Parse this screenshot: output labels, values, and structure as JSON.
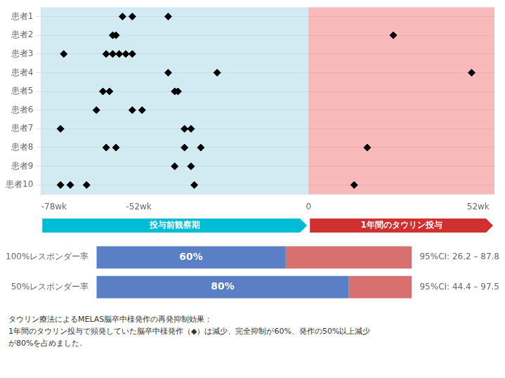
{
  "chart_data": [
    {
      "type": "scatter",
      "categories": [
        "患者1",
        "患者2",
        "患者3",
        "患者4",
        "患者5",
        "患者6",
        "患者7",
        "患者8",
        "患者9",
        "患者10"
      ],
      "x": [
        [
          -57,
          -54,
          -43
        ],
        [
          -60,
          -59,
          26
        ],
        [
          -75,
          -62,
          -60,
          -58,
          -56,
          -54
        ],
        [
          -43,
          -28,
          50
        ],
        [
          -63,
          -61,
          -41,
          -40
        ],
        [
          -65,
          -54,
          -51
        ],
        [
          -76,
          -38,
          -36
        ],
        [
          -62,
          -59,
          -38,
          -33,
          18
        ],
        [
          -41,
          -36
        ],
        [
          -76,
          -73,
          -68,
          -35,
          14
        ]
      ],
      "color": "#000000",
      "marker": "diamond",
      "xlim": [
        -82,
        57
      ],
      "xticks": [
        {
          "value": -78,
          "label": "-78wk"
        },
        {
          "value": -52,
          "label": "-52wk"
        },
        0,
        {
          "value": 52,
          "label": "52wk"
        }
      ],
      "grid": "y",
      "regions": [
        {
          "x0": -82,
          "x1": 0,
          "label": "投与前観察期",
          "color": "#add8e6",
          "band_color": "#00bcd4"
        },
        {
          "x0": 0,
          "x1": 57,
          "label": "1年間のタウリン投与",
          "color": "#f08080",
          "band_color": "#d03030"
        }
      ]
    },
    {
      "type": "bar",
      "orientation": "horizontal",
      "stacked": true,
      "categories": [
        "100%レスポンダー率",
        "50%レスポンダー率"
      ],
      "series": [
        {
          "color": "#5b7fc4",
          "values": [
            60,
            80
          ],
          "value_labels": [
            "60%",
            "80%"
          ]
        },
        {
          "color": "#d97070",
          "values": [
            40,
            20
          ]
        }
      ],
      "xlim": [
        0,
        100
      ],
      "tick_labels": "y",
      "data_labels": true,
      "annotations": [
        "95%CI: 26.2 – 87.8",
        "95%CI: 44.4 – 97.5"
      ],
      "footnote": [
        "タウリン療法によるMELAS脳卒中様発作の再発抑制効果：",
        "1年間のタウリン投与で頻発していた脳卒中様発作（◆）は減少、完全抑制が60%、発作の50%以上減少",
        "が80%を占めました."
      ]
    }
  ]
}
